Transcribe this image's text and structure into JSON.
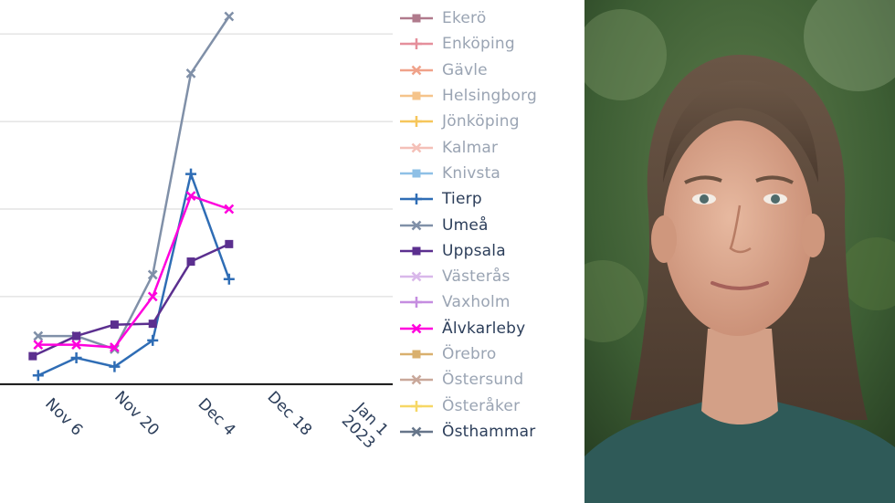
{
  "chart_data": {
    "type": "line",
    "title": "",
    "xlabel": "",
    "ylabel": "",
    "x_ticks": [
      "Nov 6",
      "Nov 20",
      "Dec 4",
      "Dec 18",
      "Jan 1\n2023"
    ],
    "x_tick_dates": [
      "2022-11-06",
      "2022-11-20",
      "2022-12-04",
      "2022-12-18",
      "2023-01-01"
    ],
    "xlim": [
      "2022-10-25",
      "2023-01-05"
    ],
    "ylim": [
      -2,
      42
    ],
    "yticks": [
      0,
      10,
      20,
      30,
      40
    ],
    "grid": true,
    "legend_position": "right",
    "series": [
      {
        "name": "Ekerö",
        "color": "#b07a8c",
        "marker": "square",
        "active": false,
        "x": [],
        "y": []
      },
      {
        "name": "Enköping",
        "color": "#e58f9b",
        "marker": "cross",
        "active": false,
        "x": [],
        "y": []
      },
      {
        "name": "Gävle",
        "color": "#f0a28a",
        "marker": "x",
        "active": false,
        "x": [],
        "y": []
      },
      {
        "name": "Helsingborg",
        "color": "#f5c48b",
        "marker": "square",
        "active": false,
        "x": [],
        "y": []
      },
      {
        "name": "Jönköping",
        "color": "#f6c65b",
        "marker": "cross",
        "active": false,
        "x": [],
        "y": []
      },
      {
        "name": "Kalmar",
        "color": "#f4c0b8",
        "marker": "x",
        "active": false,
        "x": [],
        "y": []
      },
      {
        "name": "Knivsta",
        "color": "#8ec0e6",
        "marker": "square",
        "active": false,
        "x": [],
        "y": []
      },
      {
        "name": "Tierp",
        "color": "#2f6db5",
        "marker": "cross",
        "active": true,
        "x": [
          "2022-11-01",
          "2022-11-08",
          "2022-11-15",
          "2022-11-22",
          "2022-11-29",
          "2022-12-06"
        ],
        "y": [
          1,
          3,
          2,
          5,
          24,
          12
        ]
      },
      {
        "name": "Umeå",
        "color": "#8090a8",
        "marker": "x",
        "active": true,
        "x": [
          "2022-11-01",
          "2022-11-08",
          "2022-11-15",
          "2022-11-22",
          "2022-11-29",
          "2022-12-06"
        ],
        "y": [
          5.5,
          5.5,
          4,
          12.5,
          35.5,
          42
        ]
      },
      {
        "name": "Uppsala",
        "color": "#5b2f8f",
        "marker": "square",
        "active": true,
        "x": [
          "2022-10-31",
          "2022-11-08",
          "2022-11-15",
          "2022-11-22",
          "2022-11-29",
          "2022-12-06"
        ],
        "y": [
          3.2,
          5.5,
          6.8,
          6.9,
          14,
          16
        ]
      },
      {
        "name": "Västerås",
        "color": "#d9b8ea",
        "marker": "x",
        "active": false,
        "x": [],
        "y": []
      },
      {
        "name": "Vaxholm",
        "color": "#c58de0",
        "marker": "cross",
        "active": false,
        "x": [],
        "y": []
      },
      {
        "name": "Älvkarleby",
        "color": "#ff00dd",
        "marker": "x",
        "active": true,
        "x": [
          "2022-11-01",
          "2022-11-08",
          "2022-11-15",
          "2022-11-22",
          "2022-11-29",
          "2022-12-06"
        ],
        "y": [
          4.5,
          4.5,
          4.2,
          10,
          21.5,
          20
        ]
      },
      {
        "name": "Örebro",
        "color": "#d9b06e",
        "marker": "square",
        "active": false,
        "x": [],
        "y": []
      },
      {
        "name": "Östersund",
        "color": "#c9a89a",
        "marker": "x",
        "active": false,
        "x": [],
        "y": []
      },
      {
        "name": "Österåker",
        "color": "#f6d765",
        "marker": "cross",
        "active": false,
        "x": [],
        "y": []
      },
      {
        "name": "Östhammar",
        "color": "#66758a",
        "marker": "x",
        "active": true,
        "x": [],
        "y": []
      }
    ]
  },
  "photo": {
    "subject": "portrait-of-woman",
    "background_color": "#3a5a2e"
  }
}
